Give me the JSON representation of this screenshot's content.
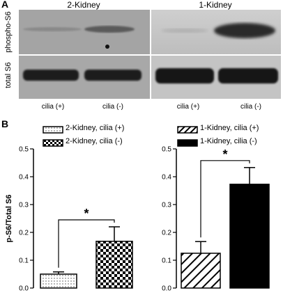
{
  "panel_a": {
    "letter": "A",
    "groups": [
      {
        "title": "2-Kidney",
        "lanes": [
          "cilia (+)",
          "cilia (-)"
        ]
      },
      {
        "title": "1-Kidney",
        "lanes": [
          "cilia (+)",
          "cilia (-)"
        ]
      }
    ],
    "row_labels": [
      "phospho-S6",
      "total S6"
    ]
  },
  "panel_b": {
    "letter": "B",
    "legend_left": [
      "2-Kidney, cilia (+)",
      "2-Kidney, cilia (-)"
    ],
    "legend_right": [
      "1-Kidney, cilia (+)",
      "1-Kidney, cilia (-)"
    ],
    "ylabel": "p-S6/Total S6",
    "significance": "*"
  },
  "chart_data": [
    {
      "type": "bar",
      "categories": [
        "2-Kidney, cilia (+)",
        "2-Kidney, cilia (-)"
      ],
      "values": [
        0.05,
        0.168
      ],
      "errors": [
        0.008,
        0.052
      ],
      "ylabel": "p-S6/Total S6",
      "ylim": [
        0,
        0.5
      ],
      "yticks": [
        "0.0",
        "0.1",
        "0.2",
        "0.3",
        "0.4",
        "0.5"
      ],
      "patterns": [
        "dotted",
        "checkerboard"
      ]
    },
    {
      "type": "bar",
      "categories": [
        "1-Kidney, cilia (+)",
        "1-Kidney, cilia (-)"
      ],
      "values": [
        0.125,
        0.373
      ],
      "errors": [
        0.042,
        0.06
      ],
      "ylim": [
        0,
        0.5
      ],
      "yticks": [
        "0.0",
        "0.1",
        "0.2",
        "0.3",
        "0.4",
        "0.5"
      ],
      "patterns": [
        "diagonal-hatch",
        "solid-black"
      ]
    }
  ]
}
